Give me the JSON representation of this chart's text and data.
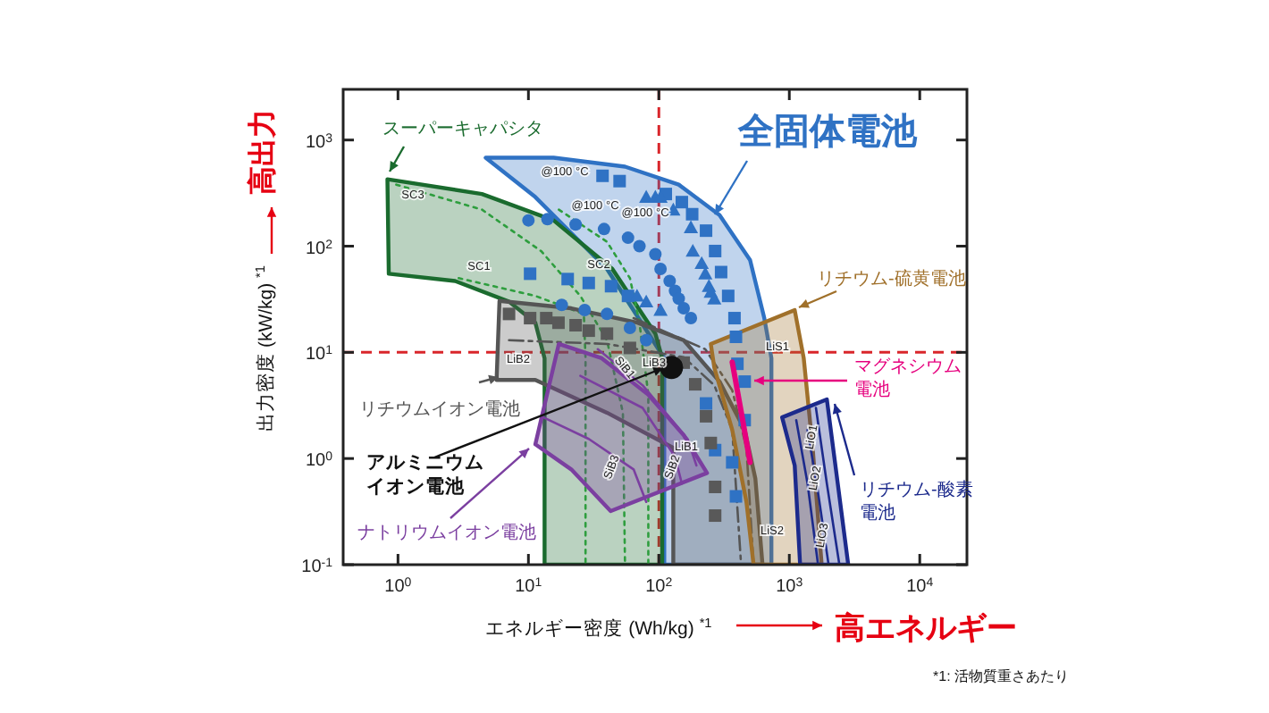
{
  "chart_data": {
    "type": "scatter",
    "xlabel": "エネルギー密度 (Wh/kg) $^{*1}$",
    "ylabel": "出力密度 (kW/kg) $^{*1}$",
    "log": "xy",
    "xlim": [
      0.38,
      23000
    ],
    "ylim": [
      0.1,
      3000
    ],
    "xticks": [
      {
        "value": 1,
        "label": "10$^{0}$"
      },
      {
        "value": 10,
        "label": "10$^{1}$"
      },
      {
        "value": 100,
        "label": "10$^{2}$"
      },
      {
        "value": 1000,
        "label": "10$^{3}$"
      },
      {
        "value": 10000,
        "label": "10$^{4}$"
      }
    ],
    "yticks": [
      {
        "value": 0.1,
        "label": "10$^{-1}$"
      },
      {
        "value": 1,
        "label": "10$^{0}$"
      },
      {
        "value": 10,
        "label": "10$^{1}$"
      },
      {
        "value": 100,
        "label": "10$^{2}$"
      },
      {
        "value": 1000,
        "label": "10$^{3}$"
      }
    ],
    "ref_lines": [
      {
        "axis": "x",
        "value": 100,
        "color": "#d9262b",
        "line_style": "dashed"
      },
      {
        "axis": "y",
        "value": 10,
        "color": "#d9262b",
        "line_style": "dashed"
      }
    ],
    "series": [
      {
        "type": "area",
        "name": "全固体電池",
        "color": "#2f72c4",
        "x": [
          4.7,
          15.6,
          55,
          142,
          292,
          500,
          643,
          729,
          729,
          110,
          110,
          40,
          11.3
        ],
        "values": [
          681,
          681,
          561,
          380,
          196,
          74,
          21,
          8.8,
          0.1,
          0.1,
          8.8,
          61,
          290
        ]
      },
      {
        "type": "area",
        "name": "スーパーキャパシタ",
        "color": "#1a6b2e",
        "x": [
          0.83,
          4.4,
          15.6,
          44,
          94,
          106,
          106,
          13.3,
          13.3,
          11.3,
          7.1,
          2.74,
          0.85
        ],
        "values": [
          427,
          310,
          175,
          61,
          15,
          8.8,
          0.1,
          0.1,
          8.8,
          19,
          30,
          47,
          55
        ]
      },
      {
        "type": "line",
        "line_style": "dotted",
        "color": "#2e9e3e",
        "x": [
          0.97,
          4.4,
          12.5,
          25,
          40,
          53,
          55
        ],
        "values": [
          380,
          221,
          90,
          34,
          13,
          2.7,
          0.1
        ]
      },
      {
        "type": "line",
        "line_style": "dotted",
        "color": "#2e9e3e",
        "x": [
          2.92,
          11.3,
          26.6,
          27.4,
          27.4
        ],
        "values": [
          50,
          34,
          23,
          8.8,
          0.1
        ]
      },
      {
        "type": "line",
        "line_style": "dotted",
        "color": "#2e9e3e",
        "x": [
          17.1,
          40,
          60,
          71,
          83,
          83
        ],
        "values": [
          221,
          110,
          50,
          19,
          4,
          0.1
        ]
      },
      {
        "type": "area",
        "name": "リチウムイオン電池",
        "color": "#555555",
        "x": [
          6.0,
          21.3,
          68.5,
          155,
          292,
          455,
          549,
          623,
          129,
          129,
          40,
          11.3,
          5.7
        ],
        "values": [
          30.5,
          26,
          19,
          13,
          5.3,
          1.86,
          0.65,
          0.1,
          0.1,
          1.26,
          2.7,
          5.5,
          5.5
        ]
      },
      {
        "type": "line",
        "line_style": "dashdot",
        "color": "#555555",
        "x": [
          7.1,
          40,
          155,
          266,
          365,
          427
        ],
        "values": [
          13,
          12,
          9,
          4.9,
          1.86,
          0.1
        ]
      },
      {
        "type": "line",
        "line_style": "dashdot",
        "color": "#555555",
        "x": [
          64,
          227,
          365,
          469,
          532
        ],
        "values": [
          21,
          10.7,
          4.4,
          1.26,
          0.1
        ]
      },
      {
        "type": "area",
        "name": "ナトリウムイオン電池",
        "color": "#7b3fa0",
        "x": [
          17.1,
          36.5,
          82.7,
          155,
          234,
          42.7,
          21.3,
          11.3
        ],
        "values": [
          12,
          8.8,
          4.0,
          1.66,
          0.73,
          0.32,
          0.79,
          1.36
        ]
      },
      {
        "type": "line",
        "line_style": "solid",
        "color": "#7b3fa0",
        "x": [
          34,
          75,
          166,
          194
        ],
        "values": [
          10.7,
          4.9,
          1.53,
          0.86
        ]
      },
      {
        "type": "line",
        "line_style": "solid",
        "color": "#7b3fa0",
        "x": [
          25,
          75,
          133,
          150
        ],
        "values": [
          6.0,
          3.0,
          1.04,
          0.58
        ]
      },
      {
        "type": "line",
        "line_style": "solid",
        "color": "#7b3fa0",
        "x": [
          12.5,
          29,
          64,
          80
        ],
        "values": [
          2.5,
          1.53,
          0.79,
          0.39
        ]
      },
      {
        "type": "area",
        "name": "リチウム-硫黄電池",
        "color": "#a0702a",
        "x": [
          250,
          1100,
          1290,
          1510,
          1770,
          532,
          469,
          365,
          266
        ],
        "values": [
          12,
          25,
          8.8,
          1.26,
          0.1,
          0.1,
          0.39,
          1.86,
          7.2
        ]
      },
      {
        "type": "area",
        "name": "リチウム-酸素電池",
        "color": "#1c2a8c",
        "x": [
          881,
          1940,
          2830,
          1210,
          1100
        ],
        "values": [
          2.44,
          3.6,
          0.1,
          0.1,
          0.86
        ]
      },
      {
        "type": "line",
        "line_style": "solid",
        "color": "#1c2a8c",
        "x": [
          1130,
          1380,
          1660
        ],
        "values": [
          2.3,
          0.58,
          0.1
        ]
      },
      {
        "type": "line",
        "line_style": "solid",
        "color": "#1c2a8c",
        "x": [
          1380,
          1660,
          2000
        ],
        "values": [
          1.86,
          0.48,
          0.1
        ]
      },
      {
        "type": "line",
        "line_style": "solid",
        "color": "#1c2a8c",
        "x": [
          1600,
          1940,
          2420
        ],
        "values": [
          3.0,
          0.58,
          0.1
        ]
      },
      {
        "marker": "square",
        "color": "#2f72c4",
        "x": [
          37,
          50,
          113,
          150,
          180,
          230,
          270,
          300,
          340,
          380,
          390,
          10.3,
          20,
          29,
          43,
          58,
          400,
          455,
          455,
          365,
          390,
          270,
          230
        ],
        "values": [
          460,
          410,
          310,
          260,
          200,
          140,
          90,
          57,
          34,
          21,
          14,
          55,
          49,
          45,
          42,
          34,
          7.8,
          5.3,
          2.3,
          0.92,
          0.44,
          1.2,
          3.3
        ]
      },
      {
        "marker": "circle",
        "color": "#2f72c4",
        "x": [
          10,
          14,
          23,
          38,
          58,
          71,
          94,
          103,
          121,
          133,
          142,
          155,
          176,
          18,
          27,
          40,
          60,
          80
        ],
        "values": [
          175,
          180,
          160,
          145,
          120,
          100,
          84,
          61,
          47,
          38,
          32,
          26,
          21,
          28,
          25,
          23,
          17,
          13
        ]
      },
      {
        "marker": "triangle",
        "color": "#2f72c4",
        "x": [
          80,
          94,
          103,
          129,
          176,
          182,
          213,
          227,
          242,
          250,
          266,
          80,
          103,
          68
        ],
        "values": [
          290,
          290,
          290,
          220,
          150,
          90,
          69,
          55,
          42,
          37,
          32,
          30,
          25,
          34
        ]
      },
      {
        "marker": "square",
        "color": "#595959",
        "x": [
          7.1,
          10.3,
          13.7,
          17,
          23,
          29,
          40,
          60,
          155,
          190,
          230,
          250,
          270,
          270
        ],
        "values": [
          23,
          21,
          21,
          19,
          18,
          16,
          15,
          11,
          8,
          5,
          2.5,
          1.4,
          0.54,
          0.29
        ]
      },
      {
        "marker": "circle",
        "name": "アルミニウムイオン電池",
        "color": "#111111",
        "x": [
          125
        ],
        "values": [
          7.2
        ]
      },
      {
        "type": "line",
        "line_style": "solid",
        "name": "マグネシウム電池",
        "color": "#e6007e",
        "x": [
          365,
          440,
          500
        ],
        "values": [
          8.1,
          2.26,
          0.92
        ]
      }
    ],
    "annotations": [
      "高出力",
      "高エネルギー",
      "*1: 活物質重さあたり",
      "SC1",
      "SC2",
      "SC3",
      "@100 °C",
      "@100 °C",
      "@100 °C",
      "LiB1",
      "LiB2",
      "LiB3",
      "SiB1",
      "SiB2",
      "SiB3",
      "LiS1",
      "LiS2",
      "LiO1",
      "LiO2",
      "LiO3"
    ]
  }
}
